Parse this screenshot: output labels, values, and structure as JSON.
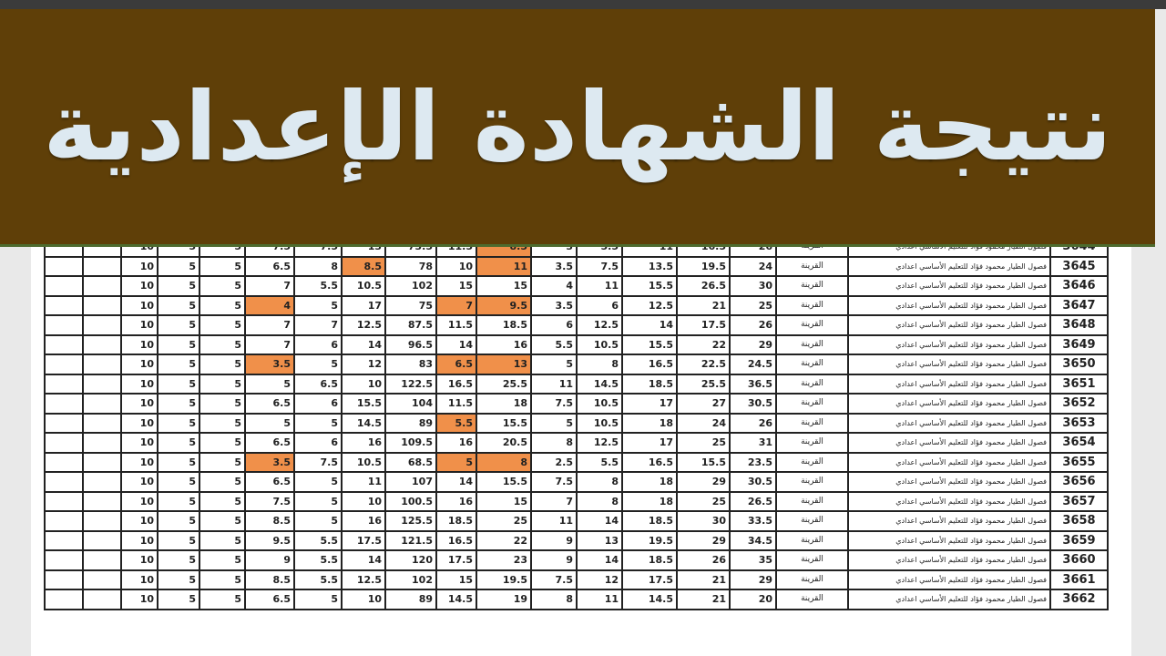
{
  "banner": {
    "title": "نتيجة الشهادة الإعدادية",
    "background": "#5f3f08",
    "text_color": "#dde9f1"
  },
  "table": {
    "highlight_color": "#f0904a",
    "rows": [
      {
        "id": "3644",
        "town": "القرينة",
        "school": "فصول الطيار محمود فؤاد للتعليم الأساسي اعدادي",
        "fixed": [
          "10",
          "5",
          "5"
        ],
        "scores": [
          "7.5",
          "7.5",
          "13",
          "73.5",
          "11.5",
          "8.5",
          "3",
          "5.5",
          "11",
          "16.5",
          "26"
        ],
        "highlight": [
          5
        ]
      },
      {
        "id": "3645",
        "town": "القرينة",
        "school": "فصول الطيار محمود فؤاد للتعليم الأساسي اعدادي",
        "fixed": [
          "10",
          "5",
          "5"
        ],
        "scores": [
          "6.5",
          "8",
          "8.5",
          "78",
          "10",
          "11",
          "3.5",
          "7.5",
          "13.5",
          "19.5",
          "24"
        ],
        "highlight": [
          2,
          5
        ]
      },
      {
        "id": "3646",
        "town": "القرينة",
        "school": "فصول الطيار محمود فؤاد للتعليم الأساسي اعدادي",
        "fixed": [
          "10",
          "5",
          "5"
        ],
        "scores": [
          "7",
          "5.5",
          "10.5",
          "102",
          "15",
          "15",
          "4",
          "11",
          "15.5",
          "26.5",
          "30"
        ],
        "highlight": []
      },
      {
        "id": "3647",
        "town": "القرينة",
        "school": "فصول الطيار محمود فؤاد للتعليم الأساسي اعدادي",
        "fixed": [
          "10",
          "5",
          "5"
        ],
        "scores": [
          "4",
          "5",
          "17",
          "75",
          "7",
          "9.5",
          "3.5",
          "6",
          "12.5",
          "21",
          "25"
        ],
        "highlight": [
          0,
          4,
          5
        ]
      },
      {
        "id": "3648",
        "town": "القرينة",
        "school": "فصول الطيار محمود فؤاد للتعليم الأساسي اعدادي",
        "fixed": [
          "10",
          "5",
          "5"
        ],
        "scores": [
          "7",
          "7",
          "12.5",
          "87.5",
          "11.5",
          "18.5",
          "6",
          "12.5",
          "14",
          "17.5",
          "26"
        ],
        "highlight": []
      },
      {
        "id": "3649",
        "town": "القرينة",
        "school": "فصول الطيار محمود فؤاد للتعليم الأساسي اعدادي",
        "fixed": [
          "10",
          "5",
          "5"
        ],
        "scores": [
          "7",
          "6",
          "14",
          "96.5",
          "14",
          "16",
          "5.5",
          "10.5",
          "15.5",
          "22",
          "29"
        ],
        "highlight": []
      },
      {
        "id": "3650",
        "town": "القرينة",
        "school": "فصول الطيار محمود فؤاد للتعليم الأساسي اعدادي",
        "fixed": [
          "10",
          "5",
          "5"
        ],
        "scores": [
          "3.5",
          "5",
          "12",
          "83",
          "6.5",
          "13",
          "5",
          "8",
          "16.5",
          "22.5",
          "24.5"
        ],
        "highlight": [
          0,
          4,
          5
        ]
      },
      {
        "id": "3651",
        "town": "القرينة",
        "school": "فصول الطيار محمود فؤاد للتعليم الأساسي اعدادي",
        "fixed": [
          "10",
          "5",
          "5"
        ],
        "scores": [
          "5",
          "6.5",
          "10",
          "122.5",
          "16.5",
          "25.5",
          "11",
          "14.5",
          "18.5",
          "25.5",
          "36.5"
        ],
        "highlight": []
      },
      {
        "id": "3652",
        "town": "القرينة",
        "school": "فصول الطيار محمود فؤاد للتعليم الأساسي اعدادي",
        "fixed": [
          "10",
          "5",
          "5"
        ],
        "scores": [
          "6.5",
          "6",
          "15.5",
          "104",
          "11.5",
          "18",
          "7.5",
          "10.5",
          "17",
          "27",
          "30.5"
        ],
        "highlight": []
      },
      {
        "id": "3653",
        "town": "القرينة",
        "school": "فصول الطيار محمود فؤاد للتعليم الأساسي اعدادي",
        "fixed": [
          "10",
          "5",
          "5"
        ],
        "scores": [
          "5",
          "5",
          "14.5",
          "89",
          "5.5",
          "15.5",
          "5",
          "10.5",
          "18",
          "24",
          "26"
        ],
        "highlight": [
          4
        ]
      },
      {
        "id": "3654",
        "town": "القرينة",
        "school": "فصول الطيار محمود فؤاد للتعليم الأساسي اعدادي",
        "fixed": [
          "10",
          "5",
          "5"
        ],
        "scores": [
          "6.5",
          "6",
          "16",
          "109.5",
          "16",
          "20.5",
          "8",
          "12.5",
          "17",
          "25",
          "31"
        ],
        "highlight": []
      },
      {
        "id": "3655",
        "town": "القرينة",
        "school": "فصول الطيار محمود فؤاد للتعليم الأساسي اعدادي",
        "fixed": [
          "10",
          "5",
          "5"
        ],
        "scores": [
          "3.5",
          "7.5",
          "10.5",
          "68.5",
          "5",
          "8",
          "2.5",
          "5.5",
          "16.5",
          "15.5",
          "23.5"
        ],
        "highlight": [
          0,
          4,
          5
        ]
      },
      {
        "id": "3656",
        "town": "القرينة",
        "school": "فصول الطيار محمود فؤاد للتعليم الأساسي اعدادي",
        "fixed": [
          "10",
          "5",
          "5"
        ],
        "scores": [
          "6.5",
          "5",
          "11",
          "107",
          "14",
          "15.5",
          "7.5",
          "8",
          "18",
          "29",
          "30.5"
        ],
        "highlight": []
      },
      {
        "id": "3657",
        "town": "القرينة",
        "school": "فصول الطيار محمود فؤاد للتعليم الأساسي اعدادي",
        "fixed": [
          "10",
          "5",
          "5"
        ],
        "scores": [
          "7.5",
          "5",
          "10",
          "100.5",
          "16",
          "15",
          "7",
          "8",
          "18",
          "25",
          "26.5"
        ],
        "highlight": []
      },
      {
        "id": "3658",
        "town": "القرينة",
        "school": "فصول الطيار محمود فؤاد للتعليم الأساسي اعدادي",
        "fixed": [
          "10",
          "5",
          "5"
        ],
        "scores": [
          "8.5",
          "5",
          "16",
          "125.5",
          "18.5",
          "25",
          "11",
          "14",
          "18.5",
          "30",
          "33.5"
        ],
        "highlight": []
      },
      {
        "id": "3659",
        "town": "القرينة",
        "school": "فصول الطيار محمود فؤاد للتعليم الأساسي اعدادي",
        "fixed": [
          "10",
          "5",
          "5"
        ],
        "scores": [
          "9.5",
          "5.5",
          "17.5",
          "121.5",
          "16.5",
          "22",
          "9",
          "13",
          "19.5",
          "29",
          "34.5"
        ],
        "highlight": []
      },
      {
        "id": "3660",
        "town": "القرينة",
        "school": "فصول الطيار محمود فؤاد للتعليم الأساسي اعدادي",
        "fixed": [
          "10",
          "5",
          "5"
        ],
        "scores": [
          "9",
          "5.5",
          "14",
          "120",
          "17.5",
          "23",
          "9",
          "14",
          "18.5",
          "26",
          "35"
        ],
        "highlight": []
      },
      {
        "id": "3661",
        "town": "القرينة",
        "school": "فصول الطيار محمود فؤاد للتعليم الأساسي اعدادي",
        "fixed": [
          "10",
          "5",
          "5"
        ],
        "scores": [
          "8.5",
          "5.5",
          "12.5",
          "102",
          "15",
          "19.5",
          "7.5",
          "12",
          "17.5",
          "21",
          "29"
        ],
        "highlight": []
      },
      {
        "id": "3662",
        "town": "القرينة",
        "school": "فصول الطيار محمود فؤاد للتعليم الأساسي اعدادي",
        "fixed": [
          "10",
          "5",
          "5"
        ],
        "scores": [
          "6.5",
          "5",
          "10",
          "89",
          "14.5",
          "19",
          "8",
          "11",
          "14.5",
          "21",
          "20"
        ],
        "highlight": []
      }
    ]
  }
}
